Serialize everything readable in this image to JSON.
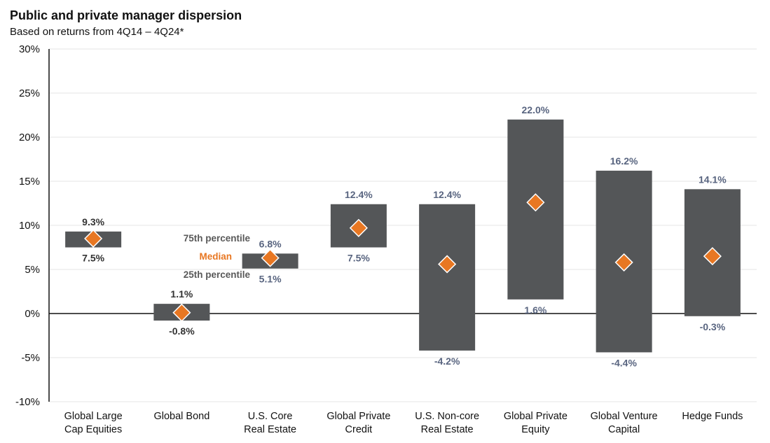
{
  "title": "Public and private manager dispersion",
  "subtitle": "Based on returns from 4Q14 – 4Q24*",
  "colors": {
    "bar": "#545658",
    "median": "#e87722",
    "label_dark": "#333333",
    "label_blue": "#596580"
  },
  "legend": {
    "p75": "75th percentile",
    "median": "Median",
    "p25": "25th percentile"
  },
  "chart_data": {
    "type": "bar",
    "title": "Public and private manager dispersion",
    "subtitle": "Based on returns from 4Q14 – 4Q24*",
    "ylim": [
      -10,
      30
    ],
    "yticks": [
      -10,
      -5,
      0,
      5,
      10,
      15,
      20,
      25,
      30
    ],
    "ytick_labels": [
      "-10%",
      "-5%",
      "0%",
      "5%",
      "10%",
      "15%",
      "20%",
      "25%",
      "30%"
    ],
    "grid": true,
    "categories": [
      [
        "Global Large",
        "Cap Equities"
      ],
      [
        "Global Bond"
      ],
      [
        "U.S. Core",
        "Real Estate"
      ],
      [
        "Global Private",
        "Credit"
      ],
      [
        "U.S. Non-core",
        "Real Estate"
      ],
      [
        "Global Private",
        "Equity"
      ],
      [
        "Global Venture",
        "Capital"
      ],
      [
        "Hedge Funds"
      ]
    ],
    "series": [
      {
        "name": "75th percentile",
        "values": [
          9.3,
          1.1,
          6.8,
          12.4,
          12.4,
          22.0,
          16.2,
          14.1
        ]
      },
      {
        "name": "Median",
        "values": [
          8.5,
          0.1,
          6.3,
          9.7,
          5.6,
          12.6,
          5.8,
          6.5
        ]
      },
      {
        "name": "25th percentile",
        "values": [
          7.5,
          -0.8,
          5.1,
          7.5,
          -4.2,
          1.6,
          -4.4,
          -0.3
        ]
      }
    ],
    "top_labels": [
      "9.3%",
      "1.1%",
      "6.8%",
      "12.4%",
      "12.4%",
      "22.0%",
      "16.2%",
      "14.1%"
    ],
    "bottom_labels": [
      "7.5%",
      "-0.8%",
      "5.1%",
      "7.5%",
      "-4.2%",
      "1.6%",
      "-4.4%",
      "-0.3%"
    ],
    "label_style": [
      "dark",
      "dark",
      "blue",
      "blue",
      "blue",
      "blue",
      "blue",
      "blue"
    ]
  }
}
